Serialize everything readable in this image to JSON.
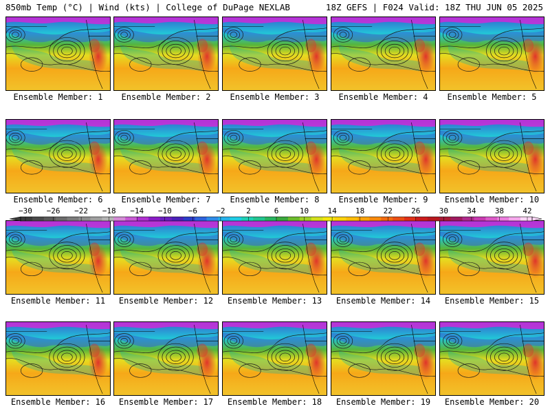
{
  "header": {
    "title_left": "850mb Temp (°C) | Wind (kts) | College of DuPage NEXLAB",
    "title_right": "18Z GEFS | F024 Valid: 18Z THU JUN 05 2025"
  },
  "members": [
    "Ensemble Member: 1",
    "Ensemble Member: 2",
    "Ensemble Member: 3",
    "Ensemble Member: 4",
    "Ensemble Member: 5",
    "Ensemble Member: 6",
    "Ensemble Member: 7",
    "Ensemble Member: 8",
    "Ensemble Member: 9",
    "Ensemble Member: 10",
    "Ensemble Member: 11",
    "Ensemble Member: 12",
    "Ensemble Member: 13",
    "Ensemble Member: 14",
    "Ensemble Member: 15",
    "Ensemble Member: 16",
    "Ensemble Member: 17",
    "Ensemble Member: 18",
    "Ensemble Member: 19",
    "Ensemble Member: 20"
  ],
  "colorbar": {
    "ticks": [
      "−30",
      "−26",
      "−22",
      "−18",
      "−14",
      "−10",
      "−6",
      "−2",
      "2",
      "6",
      "10",
      "14",
      "18",
      "22",
      "26",
      "30",
      "34",
      "38",
      "42"
    ],
    "colors": [
      "#3a3a3a",
      "#4a4a4a",
      "#5a5a5a",
      "#6b6b6b",
      "#7c7c7c",
      "#8e8e8e",
      "#a0a0a0",
      "#b4b4b4",
      "#d48cd6",
      "#c85ad4",
      "#b030d0",
      "#8a1cc6",
      "#6a1ec0",
      "#4a22b8",
      "#2c3cc8",
      "#2e62dc",
      "#2e8ce8",
      "#25b2ec",
      "#20cce6",
      "#1fd0b4",
      "#22c490",
      "#28b460",
      "#3aa83c",
      "#6cbc2c",
      "#a0d024",
      "#d4e01c",
      "#f4e60e",
      "#fcd20c",
      "#fcbc0a",
      "#faa20a",
      "#f88a0c",
      "#f26a10",
      "#ea4e14",
      "#e03018",
      "#cc1c1c",
      "#b8181e",
      "#a81a36",
      "#a01a60",
      "#b02a8c",
      "#c83ab0",
      "#dc5ac8",
      "#ec7ede",
      "#f6a8ec",
      "#fbd6f6"
    ]
  },
  "map_colors": {
    "north": "#cc2ad8",
    "cold": "#3566d0",
    "cyan": "#22c4d8",
    "teal": "#1fb79a",
    "green": "#58b53a",
    "yellow": "#e6dc20",
    "orange": "#f6a818",
    "warm": "#f2c22a",
    "hot": "#e0342a",
    "contour": "#1a1a1a",
    "border": "#000000"
  }
}
